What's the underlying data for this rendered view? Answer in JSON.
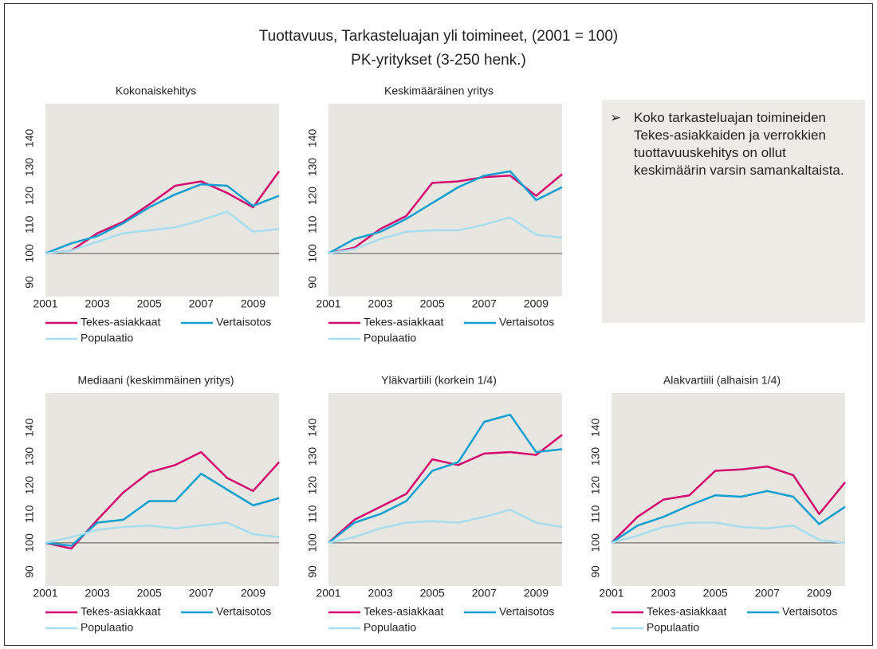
{
  "header": {
    "title": "Tuottavuus, Tarkasteluajan yli toimineet, (2001 = 100)",
    "subtitle": "PK-yritykset (3-250 henk.)"
  },
  "note": "Koko tarkasteluajan toimineiden Tekes-asiakkaiden ja verrokkien tuottavuuskehitys on ollut keskimäärin varsin samankaltaista.",
  "chart_data": [
    {
      "type": "line",
      "title": "Kokonaiskehitys",
      "x": [
        2001,
        2002,
        2003,
        2004,
        2005,
        2006,
        2007,
        2008,
        2009,
        2010
      ],
      "xlim": [
        2001,
        2010
      ],
      "xticks": [
        2001,
        2003,
        2005,
        2007,
        2009
      ],
      "ylim": [
        85,
        152
      ],
      "yticks": [
        90,
        100,
        110,
        120,
        130,
        140
      ],
      "baseline": 100,
      "series": [
        {
          "name": "Tekes-asiakkaat",
          "color": "#d4086e",
          "values": [
            100,
            101,
            107,
            111,
            117,
            123.5,
            125,
            121,
            116,
            128.5
          ]
        },
        {
          "name": "Vertaisotos",
          "color": "#109fd0",
          "values": [
            100,
            103.5,
            106,
            110.5,
            116,
            120.5,
            124,
            123.5,
            116.5,
            120
          ]
        },
        {
          "name": "Populaatio",
          "color": "#a8dcef",
          "values": [
            100,
            101,
            104,
            107,
            108,
            109,
            111.5,
            114.5,
            107.5,
            108.5
          ]
        }
      ]
    },
    {
      "type": "line",
      "title": "Keskimääräinen yritys",
      "x": [
        2001,
        2002,
        2003,
        2004,
        2005,
        2006,
        2007,
        2008,
        2009,
        2010
      ],
      "xlim": [
        2001,
        2010
      ],
      "xticks": [
        2001,
        2003,
        2005,
        2007,
        2009
      ],
      "ylim": [
        85,
        152
      ],
      "yticks": [
        90,
        100,
        110,
        120,
        130,
        140
      ],
      "baseline": 100,
      "series": [
        {
          "name": "Tekes-asiakkaat",
          "color": "#d4086e",
          "values": [
            100,
            102,
            108.5,
            113,
            124.5,
            125,
            126.5,
            127,
            120,
            127.5
          ]
        },
        {
          "name": "Vertaisotos",
          "color": "#109fd0",
          "values": [
            100,
            105,
            107.5,
            112,
            117.5,
            123,
            127,
            128.5,
            118.5,
            123
          ]
        },
        {
          "name": "Populaatio",
          "color": "#a8dcef",
          "values": [
            100,
            101.5,
            105,
            107.5,
            108,
            108,
            110,
            112.5,
            106.5,
            105.5
          ]
        }
      ]
    },
    {
      "type": "line",
      "title": "Mediaani (keskimmäinen yritys)",
      "x": [
        2001,
        2002,
        2003,
        2004,
        2005,
        2006,
        2007,
        2008,
        2009,
        2010
      ],
      "xlim": [
        2001,
        2010
      ],
      "xticks": [
        2001,
        2003,
        2005,
        2007,
        2009
      ],
      "ylim": [
        85,
        152
      ],
      "yticks": [
        90,
        100,
        110,
        120,
        130,
        140
      ],
      "baseline": 100,
      "series": [
        {
          "name": "Tekes-asiakkaat",
          "color": "#d4086e",
          "values": [
            100,
            98,
            108,
            117.5,
            124.5,
            127,
            131.5,
            122.5,
            118,
            128
          ]
        },
        {
          "name": "Vertaisotos",
          "color": "#109fd0",
          "values": [
            100,
            99,
            107,
            108,
            114.5,
            114.5,
            124,
            118.5,
            113,
            115.5
          ]
        },
        {
          "name": "Populaatio",
          "color": "#a8dcef",
          "values": [
            100,
            102,
            104.5,
            105.5,
            106,
            105,
            106,
            107,
            103,
            102
          ]
        }
      ]
    },
    {
      "type": "line",
      "title": "Yläkvartiili (korkein 1/4)",
      "x": [
        2001,
        2002,
        2003,
        2004,
        2005,
        2006,
        2007,
        2008,
        2009,
        2010
      ],
      "xlim": [
        2001,
        2010
      ],
      "xticks": [
        2001,
        2003,
        2005,
        2007,
        2009
      ],
      "ylim": [
        85,
        152
      ],
      "yticks": [
        90,
        100,
        110,
        120,
        130,
        140
      ],
      "baseline": 100,
      "series": [
        {
          "name": "Tekes-asiakkaat",
          "color": "#d4086e",
          "values": [
            100,
            108,
            112.5,
            117,
            129,
            127,
            131,
            131.5,
            130.5,
            137.5
          ]
        },
        {
          "name": "Vertaisotos",
          "color": "#109fd0",
          "values": [
            100,
            107,
            110,
            114.5,
            125,
            128,
            142,
            144.5,
            131.5,
            132.5
          ]
        },
        {
          "name": "Populaatio",
          "color": "#a8dcef",
          "values": [
            100,
            102,
            105,
            107,
            107.5,
            107,
            109,
            111.5,
            107,
            105.5
          ]
        }
      ]
    },
    {
      "type": "line",
      "title": "Alakvartiili (alhaisin 1/4)",
      "x": [
        2001,
        2002,
        2003,
        2004,
        2005,
        2006,
        2007,
        2008,
        2009,
        2010
      ],
      "xlim": [
        2001,
        2010
      ],
      "xticks": [
        2001,
        2003,
        2005,
        2007,
        2009
      ],
      "ylim": [
        85,
        152
      ],
      "yticks": [
        90,
        100,
        110,
        120,
        130,
        140
      ],
      "baseline": 100,
      "series": [
        {
          "name": "Tekes-asiakkaat",
          "color": "#d4086e",
          "values": [
            100,
            109,
            115,
            116.5,
            125,
            125.5,
            126.5,
            123.5,
            110,
            121
          ]
        },
        {
          "name": "Vertaisotos",
          "color": "#109fd0",
          "values": [
            100,
            106,
            109,
            113,
            116.5,
            116,
            118,
            116,
            106.5,
            112.5
          ]
        },
        {
          "name": "Populaatio",
          "color": "#a8dcef",
          "values": [
            100,
            102.5,
            105.5,
            107,
            107,
            105.5,
            105,
            106,
            101,
            100
          ]
        }
      ]
    }
  ]
}
